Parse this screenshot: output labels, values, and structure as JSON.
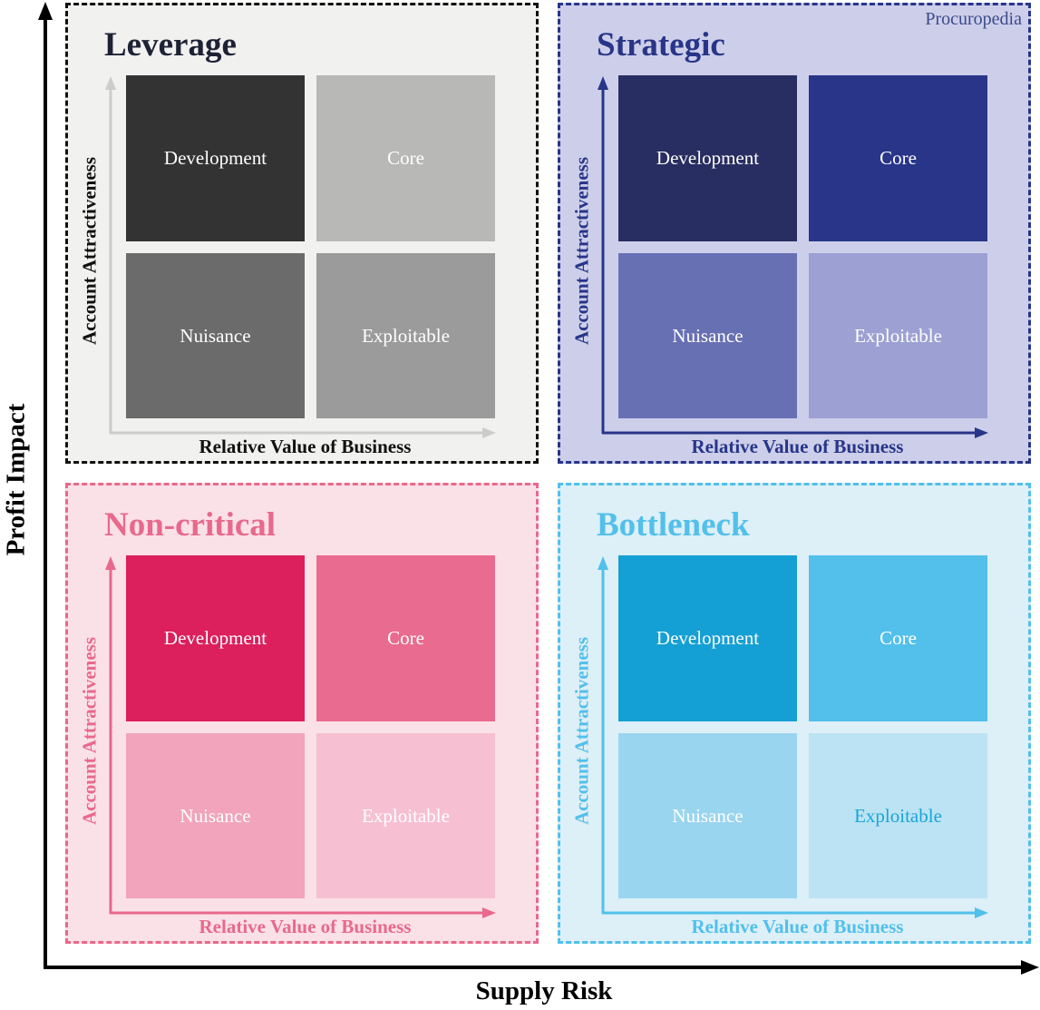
{
  "brand": "Procuropedia",
  "x_axis_label": "Supply Risk",
  "y_axis_label": "Profit Impact",
  "quadrants": [
    {
      "title": "Leverage",
      "bg": "#f1f1f0",
      "border": "#111111",
      "title_color": "#1e2235",
      "axis_color": "#cccccc",
      "label_color": "#111111",
      "x_label": "Relative Value of Business",
      "y_label": "Account Attractiveness",
      "cells": [
        {
          "label": "Development",
          "color": "#333333",
          "text": "#ffffff"
        },
        {
          "label": "Core",
          "color": "#b8b8b6",
          "text": "#ffffff"
        },
        {
          "label": "Nuisance",
          "color": "#6b6b6b",
          "text": "#ffffff"
        },
        {
          "label": "Exploitable",
          "color": "#9b9b9b",
          "text": "#ffffff"
        }
      ]
    },
    {
      "title": "Strategic",
      "bg": "#cdcfea",
      "border": "#283588",
      "title_color": "#283588",
      "axis_color": "#283588",
      "label_color": "#283588",
      "x_label": "Relative Value of Business",
      "y_label": "Account Attractiveness",
      "cells": [
        {
          "label": "Development",
          "color": "#282d62",
          "text": "#ffffff"
        },
        {
          "label": "Core",
          "color": "#283588",
          "text": "#ffffff"
        },
        {
          "label": "Nuisance",
          "color": "#6870b4",
          "text": "#ffffff"
        },
        {
          "label": "Exploitable",
          "color": "#9ca0d2",
          "text": "#ffffff"
        }
      ]
    },
    {
      "title": "Non-critical",
      "bg": "#fae1e7",
      "border": "#e8698d",
      "title_color": "#e8698d",
      "axis_color": "#e8698d",
      "label_color": "#e8698d",
      "x_label": "Relative Value of Business",
      "y_label": "Account Attractiveness",
      "cells": [
        {
          "label": "Development",
          "color": "#dc1f5d",
          "text": "#ffffff"
        },
        {
          "label": "Core",
          "color": "#e96b8f",
          "text": "#ffffff"
        },
        {
          "label": "Nuisance",
          "color": "#f1a4bb",
          "text": "#ffffff"
        },
        {
          "label": "Exploitable",
          "color": "#f6c0d2",
          "text": "#ffffff"
        }
      ]
    },
    {
      "title": "Bottleneck",
      "bg": "#ddeff7",
      "border": "#52c0ea",
      "title_color": "#52c0ea",
      "axis_color": "#52c0ea",
      "label_color": "#52c0ea",
      "x_label": "Relative Value of Business",
      "y_label": "Account Attractiveness",
      "cells": [
        {
          "label": "Development",
          "color": "#14a0d4",
          "text": "#ffffff"
        },
        {
          "label": "Core",
          "color": "#52c0ea",
          "text": "#ffffff"
        },
        {
          "label": "Nuisance",
          "color": "#9ad5ef",
          "text": "#ffffff"
        },
        {
          "label": "Exploitable",
          "color": "#bce3f3",
          "text": "#1ba5d8"
        }
      ]
    }
  ]
}
